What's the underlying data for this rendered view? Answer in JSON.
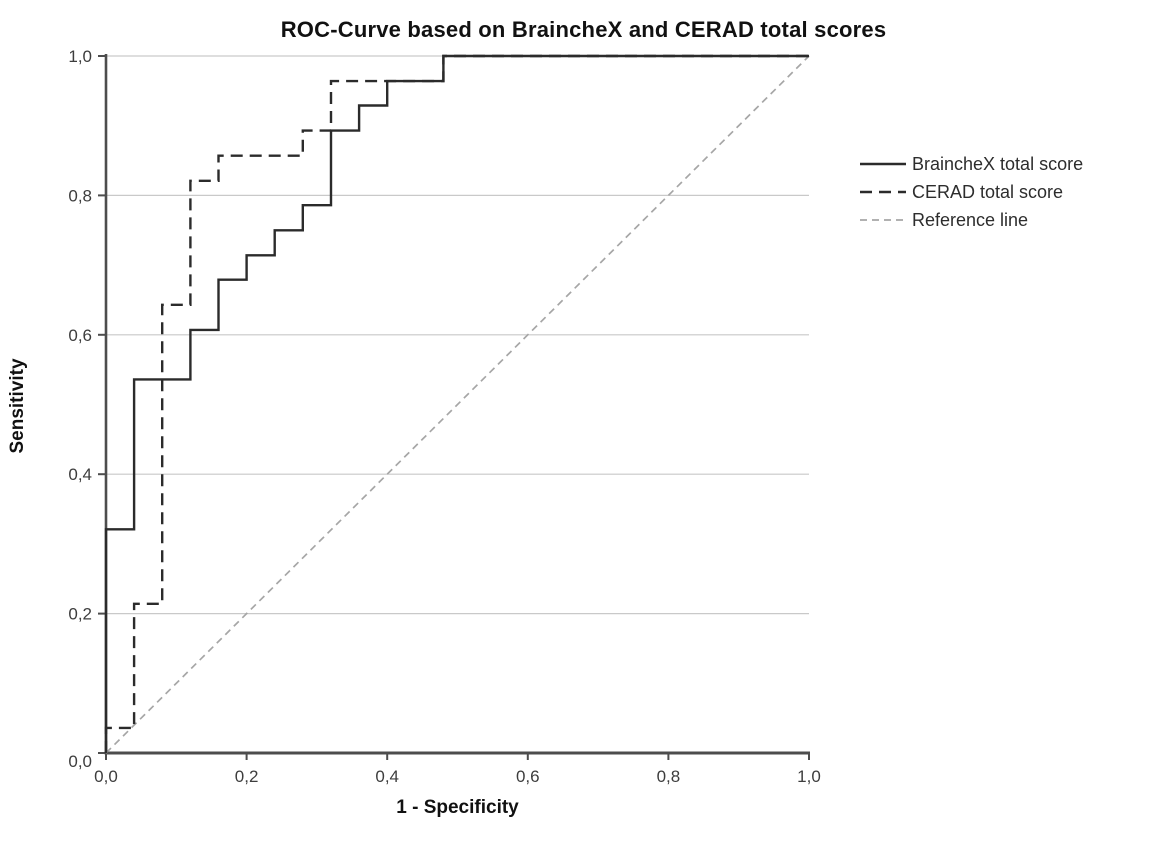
{
  "chart": {
    "title": "ROC-Curve based on BraincheX and CERAD total scores",
    "xlabel": "1 - Specificity",
    "ylabel": "Sensitivity"
  },
  "chart_data": {
    "type": "line",
    "subtype": "roc-step-curves",
    "title": "ROC-Curve based on BraincheX and CERAD total scores",
    "xlabel": "1 - Specificity",
    "ylabel": "Sensitivity",
    "xlim": [
      0,
      1
    ],
    "ylim": [
      0,
      1
    ],
    "x_ticks": {
      "values": [
        0,
        0.2,
        0.4,
        0.6,
        0.8,
        1.0
      ],
      "labels": [
        "0,0",
        "0,2",
        "0,4",
        "0,6",
        "0,8",
        "1,0"
      ]
    },
    "y_ticks": {
      "values": [
        0,
        0.2,
        0.4,
        0.6,
        0.8,
        1.0
      ],
      "labels": [
        "0,0",
        "0,2",
        "0,4",
        "0,6",
        "0,8",
        "1,0"
      ]
    },
    "grid": "horizontal-only",
    "legend_position": "right-outside",
    "series": [
      {
        "name": "BraincheX total score",
        "line_style": "solid",
        "color": "#2b2b2b",
        "stroke_width": 2.4,
        "dash": "",
        "points": [
          [
            0,
            0
          ],
          [
            0,
            0.321
          ],
          [
            0.04,
            0.321
          ],
          [
            0.04,
            0.536
          ],
          [
            0.12,
            0.536
          ],
          [
            0.12,
            0.607
          ],
          [
            0.16,
            0.607
          ],
          [
            0.16,
            0.679
          ],
          [
            0.2,
            0.679
          ],
          [
            0.2,
            0.714
          ],
          [
            0.24,
            0.714
          ],
          [
            0.24,
            0.75
          ],
          [
            0.28,
            0.75
          ],
          [
            0.28,
            0.786
          ],
          [
            0.32,
            0.786
          ],
          [
            0.32,
            0.893
          ],
          [
            0.36,
            0.893
          ],
          [
            0.36,
            0.929
          ],
          [
            0.4,
            0.929
          ],
          [
            0.4,
            0.964
          ],
          [
            0.48,
            0.964
          ],
          [
            0.48,
            1
          ],
          [
            1,
            1
          ]
        ]
      },
      {
        "name": "CERAD total score",
        "line_style": "dashed",
        "color": "#2b2b2b",
        "stroke_width": 2.4,
        "dash": "12,7",
        "points": [
          [
            0,
            0
          ],
          [
            0,
            0.036
          ],
          [
            0.04,
            0.036
          ],
          [
            0.04,
            0.214
          ],
          [
            0.08,
            0.214
          ],
          [
            0.08,
            0.643
          ],
          [
            0.12,
            0.643
          ],
          [
            0.12,
            0.821
          ],
          [
            0.16,
            0.821
          ],
          [
            0.16,
            0.857
          ],
          [
            0.28,
            0.857
          ],
          [
            0.28,
            0.893
          ],
          [
            0.32,
            0.893
          ],
          [
            0.32,
            0.964
          ],
          [
            0.48,
            0.964
          ],
          [
            0.48,
            1
          ],
          [
            1,
            1
          ]
        ]
      },
      {
        "name": "Reference line",
        "line_style": "dashed",
        "color": "#a6a6a6",
        "stroke_width": 1.7,
        "dash": "7,5",
        "points": [
          [
            0,
            0
          ],
          [
            1,
            1
          ]
        ]
      }
    ],
    "style": {
      "gridline_color": "#c9c9c9",
      "axis_color": "#4d4d4d",
      "tick_label_color": "#3d3d3d",
      "tick_label_size": 17
    }
  }
}
